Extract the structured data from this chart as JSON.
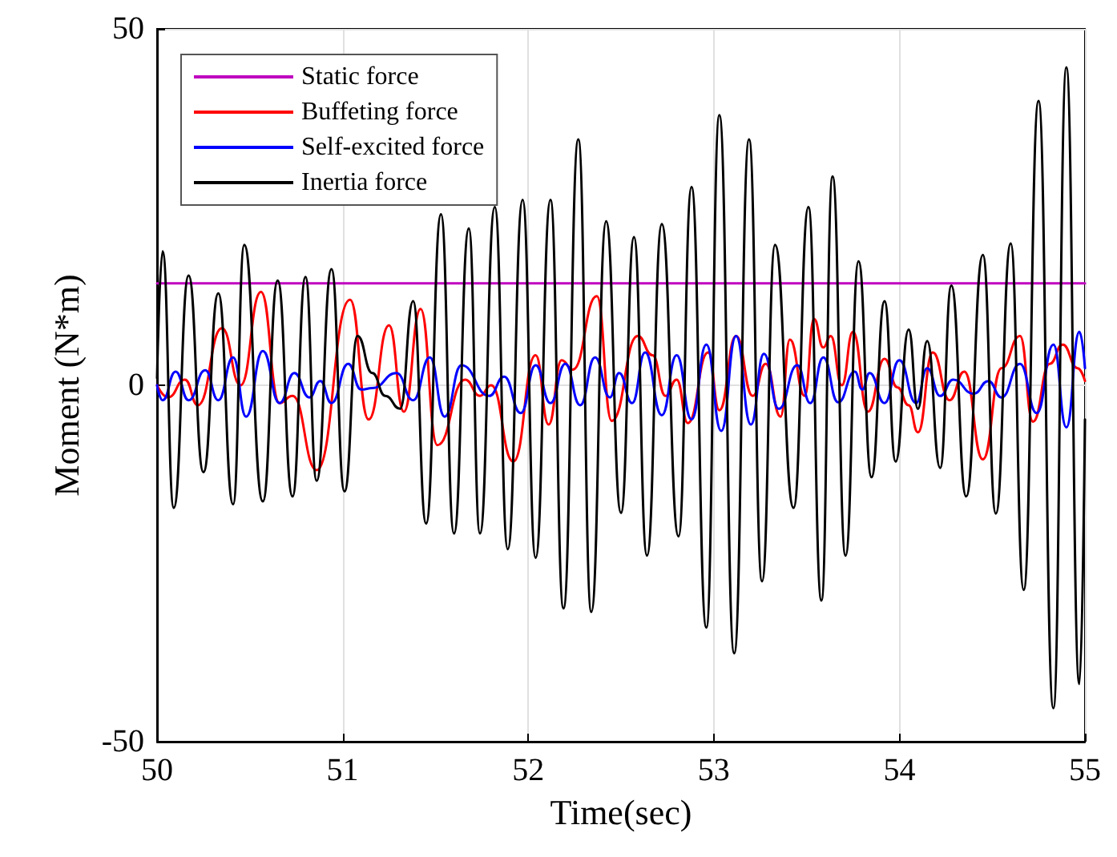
{
  "chart_data": {
    "type": "line",
    "xlabel": "Time(sec)",
    "ylabel": "Moment (N*m)",
    "xlim": [
      50,
      55
    ],
    "xticks": [
      50,
      51,
      52,
      53,
      54,
      55
    ],
    "ylim": [
      -50,
      50
    ],
    "yticks": [
      -50,
      0,
      50
    ],
    "grid": true,
    "legend": "top left",
    "marker": "none",
    "line_style": "solid",
    "series": [
      {
        "name": "Static force",
        "color": "#bf00bf",
        "x": [
          50,
          55
        ],
        "values": [
          14.3,
          14.3
        ]
      },
      {
        "name": "Buffeting force",
        "color": "#ff0000",
        "x": [
          50.0,
          50.06,
          50.15,
          50.22,
          50.35,
          50.45,
          50.56,
          50.66,
          50.73,
          50.86,
          51.04,
          51.14,
          51.25,
          51.33,
          51.42,
          51.51,
          51.66,
          51.74,
          51.8,
          51.92,
          52.04,
          52.11,
          52.18,
          52.24,
          52.37,
          52.45,
          52.59,
          52.67,
          52.74,
          52.8,
          52.86,
          52.97,
          53.03,
          53.12,
          53.21,
          53.28,
          53.36,
          53.41,
          53.49,
          53.54,
          53.59,
          53.63,
          53.69,
          53.75,
          53.83,
          53.92,
          53.99,
          54.05,
          54.1,
          54.18,
          54.27,
          54.35,
          54.45,
          54.55,
          54.65,
          54.72,
          54.81,
          54.88,
          54.96,
          55.0
        ],
        "values": [
          0,
          -1.7,
          0.8,
          -2.8,
          8,
          0,
          13.1,
          -2.5,
          -1.5,
          -11.9,
          12,
          -4.8,
          8.4,
          -3.7,
          10.7,
          -8.4,
          0.8,
          -1.5,
          0,
          -10.7,
          4.2,
          -5.5,
          3.5,
          2.2,
          12.5,
          -5,
          6.9,
          4.2,
          -1.5,
          0.8,
          -5.3,
          4.6,
          -3.5,
          6.9,
          -1.5,
          3,
          -4.4,
          6.4,
          -1.5,
          9.3,
          5.3,
          6.9,
          0,
          7.5,
          -3.7,
          3.7,
          -0.3,
          -2.8,
          -6.6,
          4.6,
          -2.1,
          1.9,
          -10.4,
          2.4,
          6.9,
          -5.1,
          3,
          5.7,
          2.4,
          0.6
        ]
      },
      {
        "name": "Self-excited force",
        "color": "#0000ff",
        "x": [
          50.0,
          50.03,
          50.1,
          50.17,
          50.26,
          50.33,
          50.41,
          50.48,
          50.57,
          50.66,
          50.74,
          50.82,
          50.88,
          50.94,
          51.03,
          51.1,
          51.16,
          51.29,
          51.38,
          51.47,
          51.55,
          51.64,
          51.79,
          51.87,
          51.96,
          52.04,
          52.12,
          52.2,
          52.28,
          52.36,
          52.44,
          52.49,
          52.56,
          52.63,
          52.72,
          52.8,
          52.88,
          52.96,
          53.04,
          53.12,
          53.2,
          53.27,
          53.35,
          53.45,
          53.52,
          53.59,
          53.67,
          53.76,
          53.8,
          53.84,
          53.92,
          54.0,
          54.09,
          54.15,
          54.22,
          54.29,
          54.4,
          54.48,
          54.55,
          54.65,
          54.74,
          54.83,
          54.9,
          54.97,
          55.0
        ],
        "values": [
          0,
          -2.1,
          1.9,
          -2.1,
          2.1,
          -2.1,
          3.9,
          -4.4,
          4.8,
          -2.5,
          1.7,
          -1.7,
          0.6,
          -2.5,
          3,
          -0.6,
          -0.4,
          1.7,
          -2.1,
          3.9,
          -4.4,
          2.8,
          -1.5,
          1.2,
          -3.9,
          2.8,
          -2.5,
          3,
          -2.8,
          3.9,
          -1.7,
          1.7,
          -2.5,
          4.6,
          -4.2,
          4.2,
          -4.8,
          5.7,
          -6.4,
          6.9,
          -5.5,
          4.4,
          -3.3,
          2.8,
          -2.5,
          3.9,
          -2.4,
          1.9,
          -0.6,
          1.7,
          -2.5,
          3.5,
          -2.5,
          2.4,
          -1.5,
          0.8,
          -1.2,
          0.6,
          -1.7,
          3,
          -3.9,
          5.7,
          -5.9,
          7.5,
          2.4
        ]
      },
      {
        "name": "Inertia force",
        "color": "#000000",
        "x": [
          50.0,
          50.03,
          50.09,
          50.17,
          50.25,
          50.33,
          50.41,
          50.47,
          50.57,
          50.65,
          50.73,
          50.8,
          50.86,
          50.94,
          51.01,
          51.08,
          51.16,
          51.23,
          51.31,
          51.38,
          51.45,
          51.53,
          51.6,
          51.68,
          51.74,
          51.82,
          51.89,
          51.97,
          52.04,
          52.12,
          52.19,
          52.27,
          52.34,
          52.42,
          52.5,
          52.57,
          52.64,
          52.72,
          52.81,
          52.88,
          52.96,
          53.03,
          53.11,
          53.19,
          53.26,
          53.33,
          53.43,
          53.51,
          53.58,
          53.64,
          53.71,
          53.78,
          53.85,
          53.92,
          53.98,
          54.05,
          54.1,
          54.15,
          54.22,
          54.28,
          54.36,
          54.45,
          54.52,
          54.6,
          54.67,
          54.75,
          54.83,
          54.9,
          54.97,
          55.0
        ],
        "values": [
          1,
          18.8,
          -17.2,
          15.4,
          -12.2,
          12.9,
          -16.7,
          19.7,
          -16.3,
          14.7,
          -15.6,
          15.2,
          -13.4,
          16.3,
          -14.9,
          6.9,
          1.7,
          -1.5,
          -3.3,
          11.8,
          -19.4,
          24,
          -20.8,
          22,
          -20.8,
          25,
          -23,
          26,
          -24.2,
          26,
          -31.3,
          34.5,
          -31.8,
          23,
          -17.9,
          20.8,
          -23.9,
          22.6,
          -21.2,
          27.8,
          -34,
          37.9,
          -37.6,
          34.5,
          -27.5,
          19.7,
          -17.2,
          25,
          -30.2,
          29.3,
          -23.9,
          17.4,
          -12.9,
          11.8,
          -10.7,
          7.8,
          -3.3,
          6.2,
          -11.6,
          14,
          -15.6,
          18.3,
          -18,
          19.9,
          -28.7,
          39.9,
          -45.3,
          44.6,
          -41.9,
          -4.8
        ]
      }
    ]
  }
}
